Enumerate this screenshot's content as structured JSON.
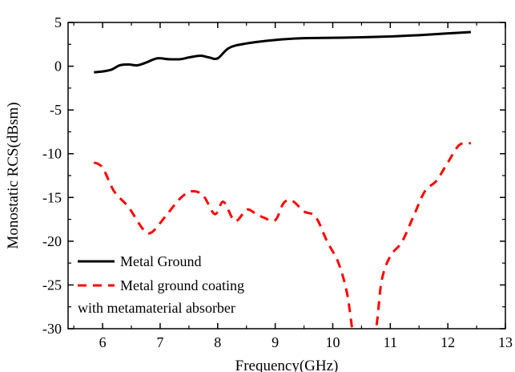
{
  "chart_data": {
    "type": "line",
    "title": "",
    "xlabel": "Frequency(GHz)",
    "ylabel": "Monostatic RCS(dBsm)",
    "xlim": [
      5.4,
      13
    ],
    "ylim": [
      -30,
      5
    ],
    "xticks": [
      6,
      7,
      8,
      9,
      10,
      11,
      12,
      13
    ],
    "yticks": [
      5,
      0,
      -5,
      -10,
      -15,
      -20,
      -25,
      -30
    ],
    "grid": false,
    "legend_position": "bottom-left",
    "legend_note": "with metamaterial absorber",
    "series": [
      {
        "name": "Metal Ground",
        "style": "solid",
        "color": "#000000",
        "x": [
          5.85,
          6.0,
          6.15,
          6.3,
          6.45,
          6.6,
          6.75,
          6.95,
          7.15,
          7.35,
          7.5,
          7.7,
          7.85,
          8.0,
          8.2,
          8.5,
          9.0,
          9.5,
          10.0,
          10.5,
          11.0,
          11.5,
          12.0,
          12.4
        ],
        "y": [
          -0.7,
          -0.6,
          -0.4,
          0.1,
          0.2,
          0.1,
          0.4,
          0.9,
          0.8,
          0.8,
          1.0,
          1.2,
          1.0,
          0.9,
          2.1,
          2.6,
          3.0,
          3.2,
          3.25,
          3.3,
          3.4,
          3.55,
          3.75,
          3.9
        ]
      },
      {
        "name": "Metal ground coating",
        "style": "dashed",
        "color": "#ff0000",
        "x": [
          5.85,
          6.0,
          6.2,
          6.45,
          6.7,
          6.85,
          7.1,
          7.35,
          7.55,
          7.75,
          7.95,
          8.1,
          8.3,
          8.5,
          8.65,
          8.8,
          9.0,
          9.15,
          9.3,
          9.5,
          9.7,
          9.9,
          10.1,
          10.25,
          10.35,
          10.45,
          10.6,
          10.75,
          10.85,
          11.0,
          11.2,
          11.4,
          11.6,
          11.8,
          12.0,
          12.2,
          12.4
        ],
        "y": [
          -11.0,
          -11.6,
          -14.3,
          -16.1,
          -18.6,
          -19.0,
          -17.1,
          -15.1,
          -14.3,
          -14.8,
          -16.9,
          -15.5,
          -17.7,
          -16.4,
          -16.8,
          -17.3,
          -17.6,
          -15.6,
          -15.4,
          -16.6,
          -17.2,
          -20.0,
          -22.5,
          -26.0,
          -30.5,
          -33.0,
          -32.5,
          -30.0,
          -24.5,
          -21.7,
          -20.1,
          -17.2,
          -14.3,
          -13.1,
          -11.0,
          -9.0,
          -8.8
        ]
      }
    ]
  }
}
